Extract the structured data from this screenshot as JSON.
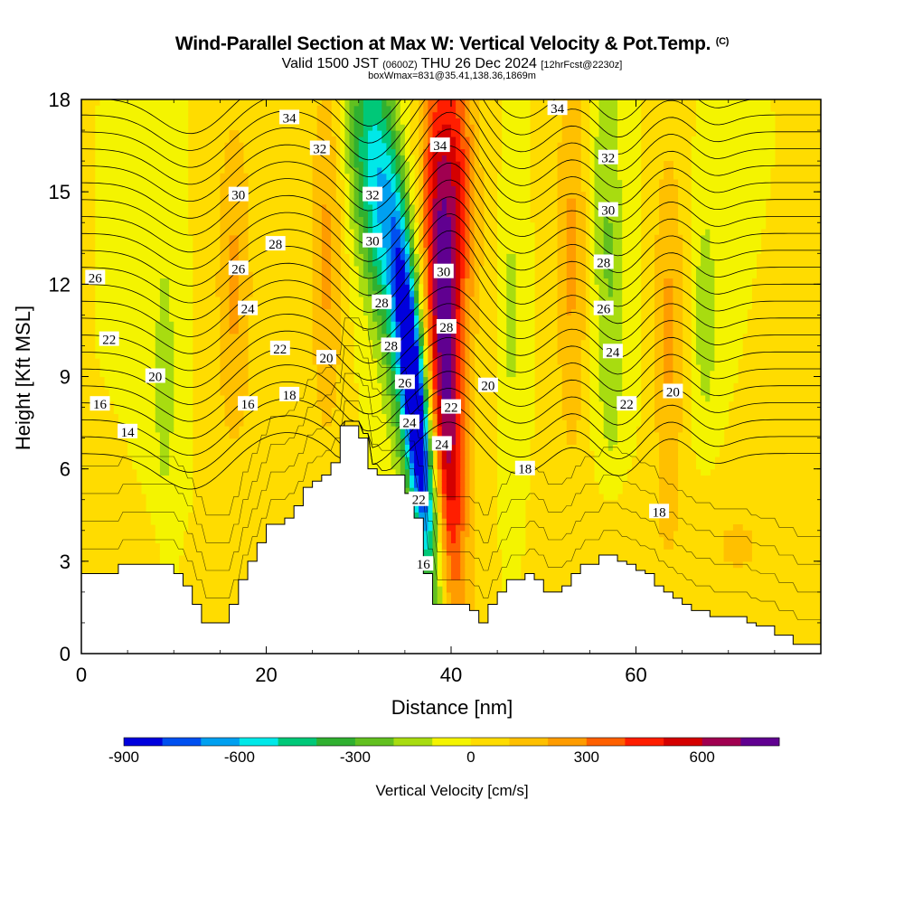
{
  "title": {
    "main": "Wind-Parallel Section at Max W: Vertical Velocity & Pot.Temp.",
    "copyright": "(C)",
    "valid_prefix": "Valid 1500 JST",
    "valid_utc": "(0600Z)",
    "valid_date": "THU 26 Dec 2024",
    "forecast": "[12hrFcst@2230z]",
    "box_info": "boxWmax=831@35.41,138.36,1869m"
  },
  "chart_data": {
    "type": "heatmap",
    "xlabel": "Distance [nm]",
    "ylabel": "Height [Kft MSL]",
    "xlim": [
      0,
      80
    ],
    "ylim": [
      0,
      18
    ],
    "x_ticks": [
      "0",
      "20",
      "40",
      "60"
    ],
    "y_ticks": [
      "0",
      "3",
      "6",
      "9",
      "12",
      "15",
      "18"
    ],
    "colorbar": {
      "label": "Vertical Velocity [cm/s]",
      "tick_labels": [
        "-900",
        "-600",
        "-300",
        "0",
        "300",
        "600"
      ],
      "tick_values": [
        -900,
        -600,
        -300,
        0,
        300,
        600
      ],
      "range": [
        -900,
        800
      ],
      "colors": [
        "#0000dd",
        "#0050f0",
        "#00a0f0",
        "#00e8e8",
        "#00c878",
        "#30b030",
        "#62c020",
        "#a8dc10",
        "#f4f400",
        "#ffdc00",
        "#ffc000",
        "#ff9c00",
        "#ff6000",
        "#ff1e00",
        "#d40000",
        "#a00050",
        "#600090"
      ]
    },
    "terrain": [
      [
        0,
        2.6
      ],
      [
        2,
        2.6
      ],
      [
        4,
        2.9
      ],
      [
        6,
        2.9
      ],
      [
        9,
        2.9
      ],
      [
        10,
        2.6
      ],
      [
        11,
        2.2
      ],
      [
        12,
        1.6
      ],
      [
        13,
        1.0
      ],
      [
        14,
        1.0
      ],
      [
        15,
        1.0
      ],
      [
        16,
        1.6
      ],
      [
        17,
        2.4
      ],
      [
        18,
        3.0
      ],
      [
        19,
        3.6
      ],
      [
        20,
        4.2
      ],
      [
        21,
        4.2
      ],
      [
        22,
        4.4
      ],
      [
        23,
        4.8
      ],
      [
        24,
        5.4
      ],
      [
        25,
        5.6
      ],
      [
        26,
        5.8
      ],
      [
        27,
        6.2
      ],
      [
        28,
        7.4
      ],
      [
        29,
        7.4
      ],
      [
        30,
        7.0
      ],
      [
        31,
        6.0
      ],
      [
        32,
        5.8
      ],
      [
        33,
        5.8
      ],
      [
        34,
        5.8
      ],
      [
        35,
        5.2
      ],
      [
        36,
        4.4
      ],
      [
        37,
        2.6
      ],
      [
        38,
        1.6
      ],
      [
        40,
        1.6
      ],
      [
        42,
        1.4
      ],
      [
        43,
        1.0
      ],
      [
        44,
        1.6
      ],
      [
        45,
        2.0
      ],
      [
        46,
        2.4
      ],
      [
        47,
        2.4
      ],
      [
        48,
        2.6
      ],
      [
        49,
        2.4
      ],
      [
        50,
        2.0
      ],
      [
        51,
        2.0
      ],
      [
        52,
        2.2
      ],
      [
        53,
        2.6
      ],
      [
        54,
        2.9
      ],
      [
        55,
        2.9
      ],
      [
        56,
        3.2
      ],
      [
        57,
        3.2
      ],
      [
        58,
        3.0
      ],
      [
        59,
        2.9
      ],
      [
        60,
        2.7
      ],
      [
        61,
        2.6
      ],
      [
        62,
        2.2
      ],
      [
        63,
        2.0
      ],
      [
        64,
        1.8
      ],
      [
        65,
        1.6
      ],
      [
        66,
        1.4
      ],
      [
        67,
        1.4
      ],
      [
        68,
        1.2
      ],
      [
        69,
        1.2
      ],
      [
        70,
        1.2
      ],
      [
        71,
        1.2
      ],
      [
        72,
        1.0
      ],
      [
        73,
        0.9
      ],
      [
        74,
        0.9
      ],
      [
        75,
        0.6
      ],
      [
        76,
        0.6
      ],
      [
        77,
        0.3
      ],
      [
        80,
        0.3
      ]
    ],
    "w_features": [
      {
        "x": 36.2,
        "y": 8.0,
        "sx": 0.9,
        "sy": 3.8,
        "w": -900,
        "tilt": -0.3
      },
      {
        "x": 34.0,
        "y": 12.0,
        "sx": 1.5,
        "sy": 5.5,
        "w": -450,
        "tilt": -0.3
      },
      {
        "x": 31.0,
        "y": 15.5,
        "sx": 1.6,
        "sy": 3.0,
        "w": -350,
        "tilt": -0.25
      },
      {
        "x": 39.3,
        "y": 9.5,
        "sx": 1.3,
        "sy": 5.5,
        "w": 720,
        "tilt": -0.15
      },
      {
        "x": 40.5,
        "y": 15.5,
        "sx": 1.6,
        "sy": 3.5,
        "w": 450,
        "tilt": -0.1
      },
      {
        "x": 9.0,
        "y": 9.0,
        "sx": 0.9,
        "sy": 3.5,
        "w": -160,
        "tilt": 0.0
      },
      {
        "x": 16.5,
        "y": 12.0,
        "sx": 1.4,
        "sy": 4.0,
        "w": 220,
        "tilt": 0.0
      },
      {
        "x": 26.5,
        "y": 13.0,
        "sx": 1.3,
        "sy": 4.5,
        "w": 220,
        "tilt": 0.0
      },
      {
        "x": 46.5,
        "y": 11.0,
        "sx": 0.7,
        "sy": 2.5,
        "w": -150,
        "tilt": 0.0
      },
      {
        "x": 57.0,
        "y": 13.0,
        "sx": 1.2,
        "sy": 5.5,
        "w": -210,
        "tilt": -0.05
      },
      {
        "x": 53.0,
        "y": 13.0,
        "sx": 1.2,
        "sy": 5.0,
        "w": 220,
        "tilt": 0.0
      },
      {
        "x": 63.5,
        "y": 10.5,
        "sx": 1.2,
        "sy": 4.5,
        "w": 220,
        "tilt": 0.0
      },
      {
        "x": 67.5,
        "y": 11.0,
        "sx": 0.9,
        "sy": 2.6,
        "w": -180,
        "tilt": 0.0
      },
      {
        "x": 71.0,
        "y": 3.5,
        "sx": 4.0,
        "sy": 1.5,
        "w": 110,
        "tilt": 0.0
      },
      {
        "x": 58.0,
        "y": 4.0,
        "sx": 3.0,
        "sy": 1.2,
        "w": 100,
        "tilt": 0.0
      },
      {
        "x": 5.0,
        "y": 3.2,
        "sx": 2.5,
        "sy": 0.8,
        "w": 90,
        "tilt": 0.0
      }
    ],
    "theta_lines": [
      14,
      15,
      16,
      17,
      18,
      19,
      20,
      21,
      22,
      23,
      24,
      25,
      26,
      27,
      28,
      29,
      30,
      31,
      32,
      33,
      34,
      35
    ],
    "theta_labels": [
      {
        "text": "34",
        "x": 22.5,
        "y": 17.4
      },
      {
        "text": "32",
        "x": 25.8,
        "y": 16.4
      },
      {
        "text": "30",
        "x": 17.0,
        "y": 14.9
      },
      {
        "text": "28",
        "x": 21.0,
        "y": 13.3
      },
      {
        "text": "26",
        "x": 1.5,
        "y": 12.2
      },
      {
        "text": "26",
        "x": 17.0,
        "y": 12.5
      },
      {
        "text": "24",
        "x": 18.0,
        "y": 11.2
      },
      {
        "text": "22",
        "x": 3.0,
        "y": 10.2
      },
      {
        "text": "22",
        "x": 21.5,
        "y": 9.9
      },
      {
        "text": "20",
        "x": 8.0,
        "y": 9.0
      },
      {
        "text": "20",
        "x": 26.5,
        "y": 9.6
      },
      {
        "text": "18",
        "x": 22.5,
        "y": 8.4
      },
      {
        "text": "16",
        "x": 2.0,
        "y": 8.1
      },
      {
        "text": "16",
        "x": 18.0,
        "y": 8.1
      },
      {
        "text": "14",
        "x": 5.0,
        "y": 7.2
      },
      {
        "text": "32",
        "x": 31.5,
        "y": 14.9
      },
      {
        "text": "30",
        "x": 31.5,
        "y": 13.4
      },
      {
        "text": "28",
        "x": 32.5,
        "y": 11.4
      },
      {
        "text": "28",
        "x": 33.5,
        "y": 10.0
      },
      {
        "text": "26",
        "x": 35.0,
        "y": 8.8
      },
      {
        "text": "24",
        "x": 35.5,
        "y": 7.5
      },
      {
        "text": "22",
        "x": 36.5,
        "y": 5.0
      },
      {
        "text": "16",
        "x": 37.0,
        "y": 2.9
      },
      {
        "text": "34",
        "x": 38.8,
        "y": 16.5
      },
      {
        "text": "30",
        "x": 39.2,
        "y": 12.4
      },
      {
        "text": "28",
        "x": 39.5,
        "y": 10.6
      },
      {
        "text": "22",
        "x": 40.0,
        "y": 8.0
      },
      {
        "text": "24",
        "x": 39.0,
        "y": 6.8
      },
      {
        "text": "20",
        "x": 44.0,
        "y": 8.7
      },
      {
        "text": "18",
        "x": 48.0,
        "y": 6.0
      },
      {
        "text": "34",
        "x": 51.5,
        "y": 17.7
      },
      {
        "text": "32",
        "x": 57.0,
        "y": 16.1
      },
      {
        "text": "30",
        "x": 57.0,
        "y": 14.4
      },
      {
        "text": "28",
        "x": 56.5,
        "y": 12.7
      },
      {
        "text": "26",
        "x": 56.5,
        "y": 11.2
      },
      {
        "text": "24",
        "x": 57.5,
        "y": 9.8
      },
      {
        "text": "22",
        "x": 59.0,
        "y": 8.1
      },
      {
        "text": "20",
        "x": 64.0,
        "y": 8.5
      },
      {
        "text": "18",
        "x": 62.5,
        "y": 4.6
      }
    ]
  }
}
